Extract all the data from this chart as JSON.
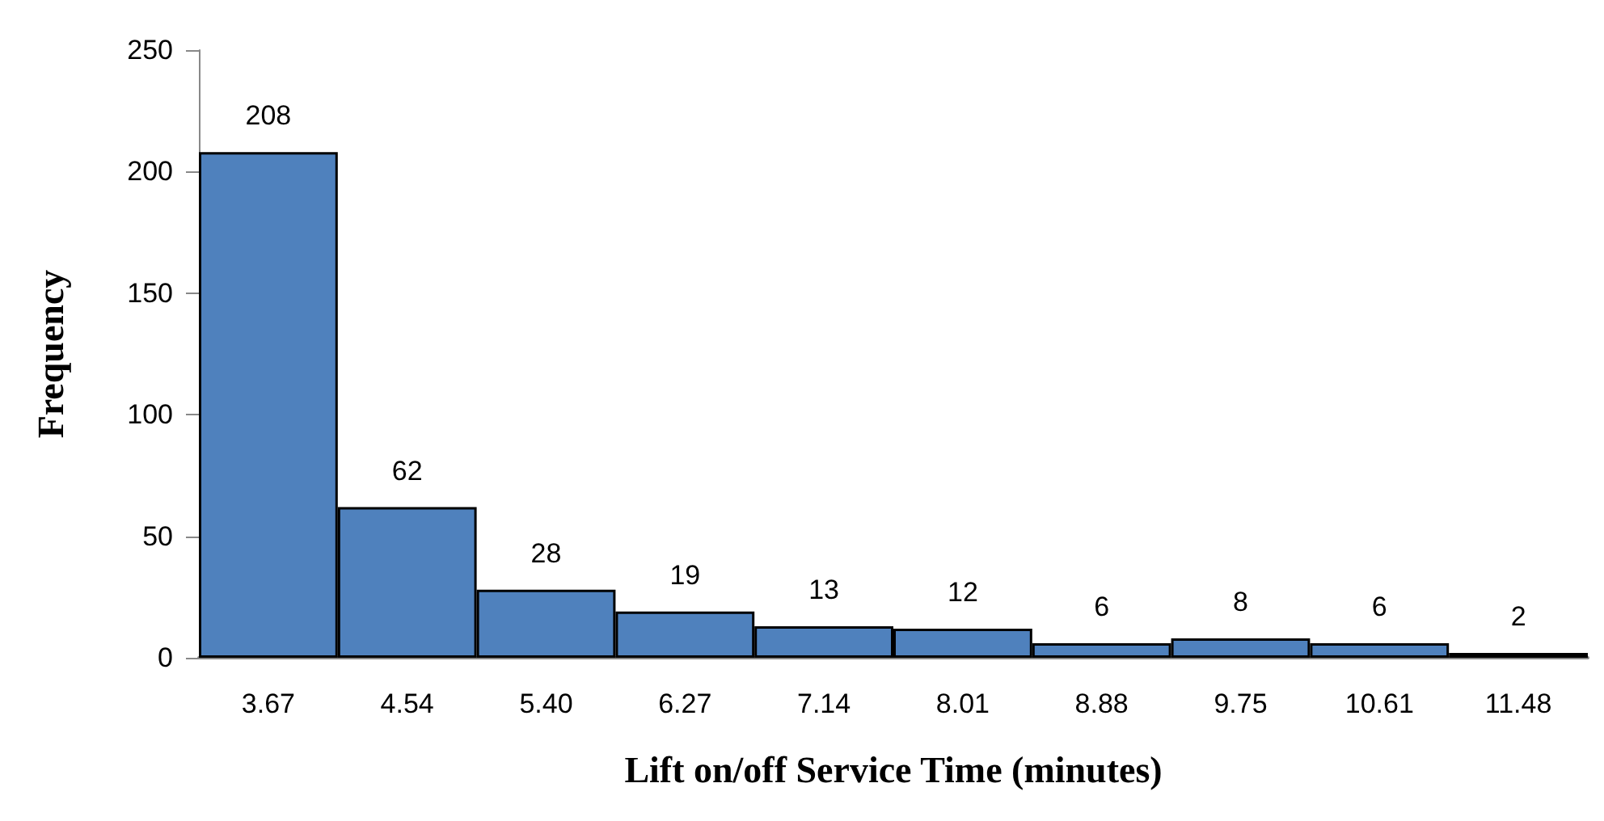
{
  "chart_data": {
    "type": "bar",
    "xlabel": "Lift on/off Service Time (minutes)",
    "ylabel": "Frequency",
    "categories": [
      "3.67",
      "4.54",
      "5.40",
      "6.27",
      "7.14",
      "8.01",
      "8.88",
      "9.75",
      "10.61",
      "11.48"
    ],
    "values": [
      208,
      62,
      28,
      19,
      13,
      12,
      6,
      8,
      6,
      2
    ],
    "color": "#4f81bd",
    "ylim": [
      0,
      250
    ],
    "yticks": [
      0,
      50,
      100,
      150,
      200,
      250
    ],
    "grid": false,
    "data_labels": true
  }
}
